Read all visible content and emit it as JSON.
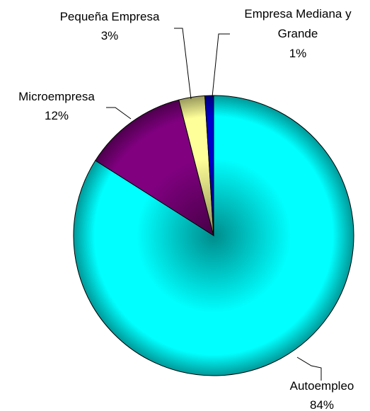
{
  "chart_data": {
    "type": "pie",
    "categories": [
      "Autoempleo",
      "Microempresa",
      "Pequeña Empresa",
      "Empresa Mediana y Grande"
    ],
    "values": [
      84,
      12,
      3,
      1
    ],
    "value_labels": [
      "84%",
      "12%",
      "3%",
      "1%"
    ],
    "colors": [
      "#00ffff",
      "#800080",
      "#ffff99",
      "#0000cc"
    ],
    "start_angle": 0,
    "direction": "clockwise"
  }
}
